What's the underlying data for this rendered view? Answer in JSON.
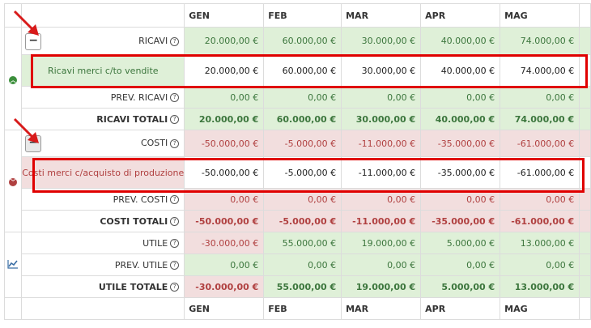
{
  "months": [
    "GEN",
    "FEB",
    "MAR",
    "APR",
    "MAG"
  ],
  "ricavi": {
    "label": "RICAVI",
    "values": [
      "20.000,00 €",
      "60.000,00 €",
      "30.000,00 €",
      "40.000,00 €",
      "74.000,00 €"
    ]
  },
  "ricavi_merci": {
    "label": "Ricavi merci c/to vendite",
    "values": [
      "20.000,00 €",
      "60.000,00 €",
      "30.000,00 €",
      "40.000,00 €",
      "74.000,00 €"
    ]
  },
  "prev_ricavi": {
    "label": "PREV. RICAVI",
    "values": [
      "0,00 €",
      "0,00 €",
      "0,00 €",
      "0,00 €",
      "0,00 €"
    ]
  },
  "ricavi_totali": {
    "label": "RICAVI TOTALI",
    "values": [
      "20.000,00 €",
      "60.000,00 €",
      "30.000,00 €",
      "40.000,00 €",
      "74.000,00 €"
    ]
  },
  "costi": {
    "label": "COSTI",
    "values": [
      "-50.000,00 €",
      "-5.000,00 €",
      "-11.000,00 €",
      "-35.000,00 €",
      "-61.000,00 €"
    ]
  },
  "costi_merci": {
    "label": "Costi merci c/acquisto di produzione",
    "values": [
      "-50.000,00 €",
      "-5.000,00 €",
      "-11.000,00 €",
      "-35.000,00 €",
      "-61.000,00 €"
    ]
  },
  "prev_costi": {
    "label": "PREV. COSTI",
    "values": [
      "0,00 €",
      "0,00 €",
      "0,00 €",
      "0,00 €",
      "0,00 €"
    ]
  },
  "costi_totali": {
    "label": "COSTI TOTALI",
    "values": [
      "-50.000,00 €",
      "-5.000,00 €",
      "-11.000,00 €",
      "-35.000,00 €",
      "-61.000,00 €"
    ]
  },
  "utile": {
    "label": "UTILE",
    "values": [
      "-30.000,00 €",
      "55.000,00 €",
      "19.000,00 €",
      "5.000,00 €",
      "13.000,00 €"
    ]
  },
  "prev_utile": {
    "label": "PREV. UTILE",
    "values": [
      "0,00 €",
      "0,00 €",
      "0,00 €",
      "0,00 €",
      "0,00 €"
    ]
  },
  "utile_totale": {
    "label": "UTILE TOTALE",
    "values": [
      "-30.000,00 €",
      "55.000,00 €",
      "19.000,00 €",
      "5.000,00 €",
      "13.000,00 €"
    ]
  },
  "help_glyph": "?",
  "toggle_glyph": "−",
  "colors": {
    "positive_bg": "#dff0d8",
    "positive_text": "#3c763d",
    "negative_bg": "#f2dede",
    "negative_text": "#b04040",
    "highlight": "#e00000"
  },
  "icons": {
    "revenue_section": "chevron-up-circle-icon",
    "cost_section": "chevron-down-circle-icon",
    "profit_section": "line-chart-icon"
  }
}
